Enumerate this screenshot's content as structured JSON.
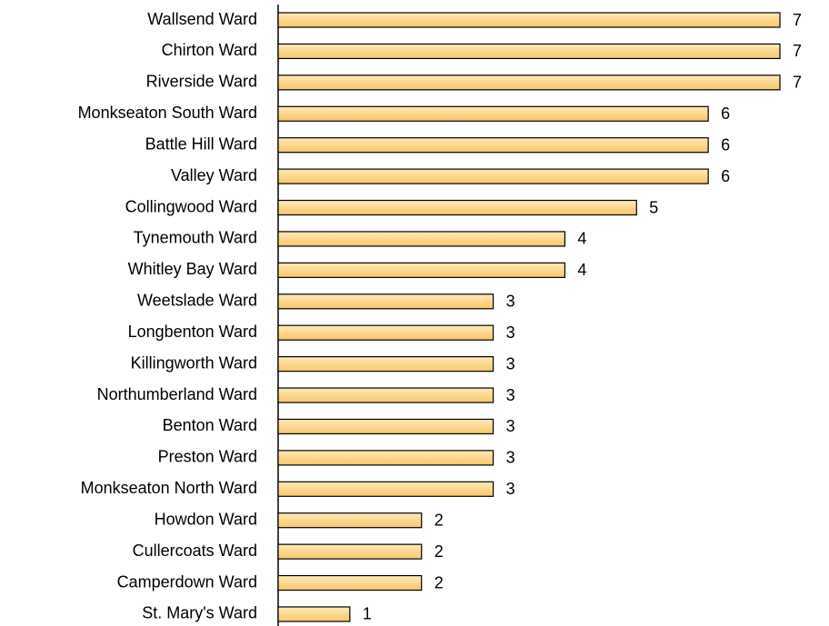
{
  "chart_data": {
    "type": "bar",
    "orientation": "horizontal",
    "color": "#ffd480",
    "categories": [
      "Wallsend Ward",
      "Chirton Ward",
      "Riverside Ward",
      "Monkseaton South Ward",
      "Battle Hill Ward",
      "Valley Ward",
      "Collingwood Ward",
      "Tynemouth Ward",
      "Whitley Bay Ward",
      "Weetslade Ward",
      "Longbenton Ward",
      "Killingworth Ward",
      "Northumberland Ward",
      "Benton Ward",
      "Preston Ward",
      "Monkseaton North Ward",
      "Howdon Ward",
      "Cullercoats Ward",
      "Camperdown Ward",
      "St. Mary's Ward"
    ],
    "values": [
      7,
      7,
      7,
      6,
      6,
      6,
      5,
      4,
      4,
      3,
      3,
      3,
      3,
      3,
      3,
      3,
      2,
      2,
      2,
      1
    ]
  }
}
